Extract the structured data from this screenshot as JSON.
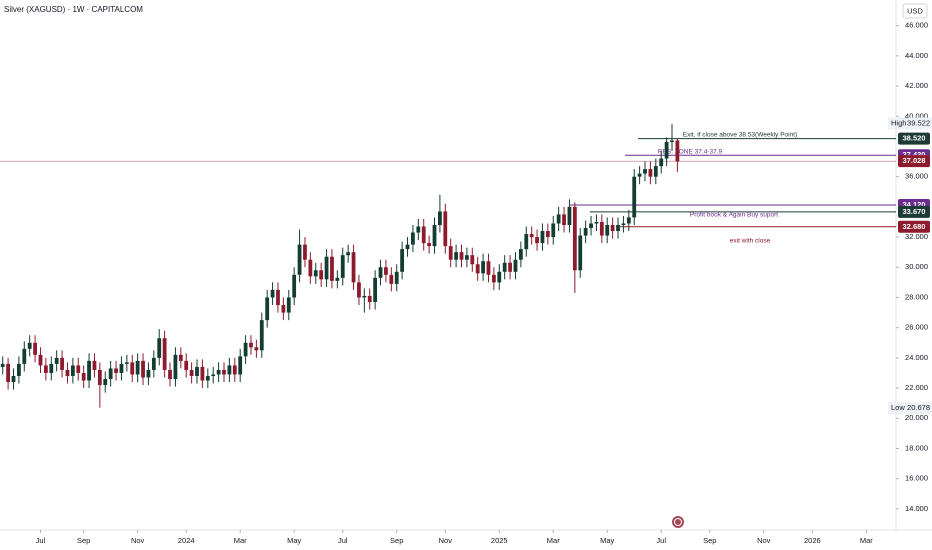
{
  "chart_data": {
    "type": "candlestick",
    "title": "Silver (XAGUSD) · 1W · CAPITALCOM",
    "currency": "USD",
    "up_color": "#133d33",
    "down_color": "#8e1b2d",
    "xlim": [
      -0.5,
      165.5
    ],
    "xticks": [
      {
        "value": 7,
        "label": "Jul"
      },
      {
        "value": 15,
        "label": "Sep"
      },
      {
        "value": 25,
        "label": "Nov"
      },
      {
        "value": 34,
        "label": "2024"
      },
      {
        "value": 44,
        "label": "Mar"
      },
      {
        "value": 54,
        "label": "May"
      },
      {
        "value": 63,
        "label": "Jul"
      },
      {
        "value": 73,
        "label": "Sep"
      },
      {
        "value": 82,
        "label": "Nov"
      },
      {
        "value": 92,
        "label": "2025"
      },
      {
        "value": 102,
        "label": "Mar"
      },
      {
        "value": 112,
        "label": "May"
      },
      {
        "value": 122,
        "label": "Jul"
      },
      {
        "value": 131,
        "label": "Sep"
      },
      {
        "value": 141,
        "label": "Nov"
      },
      {
        "value": 150,
        "label": "2026"
      },
      {
        "value": 160,
        "label": "Mar"
      }
    ],
    "ylim": [
      12.6,
      47.7
    ],
    "yticks": [
      {
        "value": 46,
        "label": "46.000"
      },
      {
        "value": 44,
        "label": "44.000"
      },
      {
        "value": 42,
        "label": "42.000"
      },
      {
        "value": 40,
        "label": "40.000"
      },
      {
        "value": 36,
        "label": "36.000"
      },
      {
        "value": 32,
        "label": "32.000"
      },
      {
        "value": 30,
        "label": "30.000"
      },
      {
        "value": 28,
        "label": "28.000"
      },
      {
        "value": 26,
        "label": "26.000"
      },
      {
        "value": 24,
        "label": "24.000"
      },
      {
        "value": 22,
        "label": "22.000"
      },
      {
        "value": 20,
        "label": "20.000"
      },
      {
        "value": 18,
        "label": "18.000"
      },
      {
        "value": 16,
        "label": "16.000"
      },
      {
        "value": 14,
        "label": "14.000"
      }
    ],
    "open": [
      23.4,
      23.6,
      22.4,
      22.8,
      23.6,
      24.6,
      25.0,
      24.2,
      23.5,
      23.0,
      23.6,
      24.0,
      23.2,
      22.8,
      23.5,
      23.0,
      22.5,
      23.8,
      23.2,
      22.2,
      22.6,
      23.3,
      23.0,
      23.6,
      23.7,
      22.9,
      23.8,
      22.7,
      23.2,
      24.0,
      25.3,
      23.2,
      22.6,
      24.2,
      23.8,
      23.2,
      22.8,
      23.4,
      22.5,
      22.8,
      22.9,
      23.2,
      22.9,
      23.5,
      22.9,
      24.1,
      25.0,
      24.7,
      24.5,
      26.5,
      28.0,
      28.5,
      27.5,
      27.0,
      28.0,
      29.5,
      31.5,
      30.5,
      29.4,
      29.8,
      29.2,
      30.7,
      29.1,
      29.3,
      30.8,
      31.0,
      29.0,
      28.0,
      28.1,
      27.7,
      29.3,
      30.0,
      29.5,
      28.9,
      29.7,
      31.2,
      31.5,
      32.3,
      32.7,
      31.6,
      31.4,
      32.8,
      33.7,
      31.4,
      30.5,
      31.0,
      30.5,
      30.8,
      30.2,
      29.6,
      30.4,
      29.5,
      29.0,
      29.7,
      30.3,
      29.7,
      30.5,
      31.2,
      32.2,
      32.0,
      31.6,
      32.4,
      32.0,
      32.9,
      33.5,
      32.8,
      34.0,
      29.8,
      32.1,
      32.6,
      32.9,
      33.0,
      32.1,
      32.8,
      32.4,
      32.8,
      32.9,
      33.3,
      36.0,
      36.2,
      36.5,
      36.0,
      36.7,
      37.2,
      38.3,
      38.4
    ],
    "high": [
      24.1,
      24.0,
      23.3,
      24.1,
      25.1,
      25.5,
      25.5,
      24.7,
      24.0,
      24.1,
      24.5,
      24.5,
      23.7,
      24.0,
      24.0,
      23.5,
      24.3,
      24.3,
      23.7,
      23.1,
      23.8,
      23.8,
      24.1,
      24.2,
      24.2,
      24.3,
      24.3,
      23.7,
      24.5,
      25.9,
      25.8,
      23.7,
      24.7,
      24.7,
      24.3,
      23.7,
      23.9,
      23.9,
      23.3,
      23.4,
      23.7,
      23.7,
      24.0,
      24.0,
      24.6,
      25.5,
      25.5,
      25.2,
      27.0,
      28.5,
      29.0,
      29.0,
      28.0,
      28.5,
      30.0,
      32.5,
      32.0,
      31.0,
      30.3,
      30.3,
      31.2,
      31.2,
      29.8,
      31.3,
      31.5,
      31.5,
      29.5,
      28.6,
      28.6,
      29.8,
      30.5,
      30.5,
      30.0,
      30.2,
      31.7,
      32.0,
      32.8,
      33.2,
      33.2,
      32.1,
      33.3,
      34.8,
      34.2,
      31.9,
      31.5,
      31.5,
      31.3,
      31.3,
      30.7,
      30.9,
      30.9,
      30.0,
      30.2,
      30.8,
      30.8,
      31.0,
      31.7,
      32.7,
      32.7,
      32.5,
      32.9,
      32.9,
      33.4,
      34.0,
      34.0,
      34.5,
      34.3,
      32.6,
      33.1,
      33.4,
      33.5,
      33.5,
      33.3,
      33.3,
      33.3,
      33.4,
      33.8,
      36.5,
      36.7,
      37.0,
      37.0,
      37.2,
      37.7,
      38.6,
      39.5,
      38.5
    ],
    "low": [
      22.9,
      21.9,
      21.9,
      22.3,
      23.1,
      24.1,
      23.7,
      23.0,
      22.5,
      22.5,
      23.1,
      22.7,
      22.3,
      22.3,
      22.5,
      22.0,
      22.0,
      22.7,
      20.7,
      21.7,
      22.1,
      22.5,
      22.5,
      23.1,
      22.4,
      22.4,
      22.2,
      22.2,
      22.7,
      23.5,
      22.7,
      22.1,
      22.1,
      23.3,
      22.7,
      22.3,
      22.3,
      22.0,
      22.0,
      22.3,
      22.4,
      22.4,
      22.4,
      22.4,
      22.4,
      23.6,
      24.2,
      24.0,
      24.0,
      26.0,
      27.5,
      27.0,
      26.5,
      26.5,
      27.5,
      29.0,
      30.0,
      28.9,
      28.9,
      28.7,
      28.7,
      28.6,
      28.6,
      28.8,
      30.3,
      28.5,
      27.5,
      27.0,
      27.2,
      27.2,
      28.8,
      29.0,
      28.4,
      28.4,
      29.2,
      30.7,
      31.0,
      31.8,
      31.1,
      30.9,
      30.9,
      32.3,
      30.9,
      30.0,
      30.0,
      30.0,
      30.0,
      29.7,
      29.1,
      29.1,
      29.0,
      28.5,
      28.5,
      29.2,
      29.2,
      29.2,
      30.0,
      30.7,
      31.5,
      31.1,
      31.1,
      31.5,
      31.5,
      32.4,
      32.3,
      32.3,
      28.3,
      29.3,
      31.6,
      32.1,
      32.4,
      31.6,
      31.6,
      31.9,
      31.9,
      32.3,
      32.4,
      32.8,
      35.5,
      35.7,
      35.5,
      35.5,
      36.2,
      36.7,
      37.7,
      36.3
    ],
    "close": [
      23.6,
      22.4,
      22.8,
      23.6,
      24.6,
      25.0,
      24.2,
      23.5,
      23.0,
      23.6,
      24.0,
      23.2,
      22.8,
      23.5,
      23.0,
      22.5,
      23.8,
      23.2,
      22.2,
      22.6,
      23.3,
      23.0,
      23.6,
      23.7,
      22.9,
      23.8,
      22.7,
      23.2,
      24.0,
      25.3,
      23.2,
      22.6,
      24.2,
      23.8,
      23.2,
      22.8,
      23.4,
      22.5,
      22.8,
      22.9,
      23.2,
      22.9,
      23.5,
      22.9,
      24.1,
      25.0,
      24.7,
      24.5,
      26.5,
      28.0,
      28.5,
      27.5,
      27.0,
      28.0,
      29.5,
      31.5,
      30.5,
      29.4,
      29.8,
      29.2,
      30.7,
      29.1,
      29.3,
      30.8,
      31.0,
      29.0,
      28.0,
      28.1,
      27.7,
      29.3,
      30.0,
      29.5,
      28.9,
      29.7,
      31.2,
      31.5,
      32.3,
      32.7,
      31.6,
      31.4,
      32.8,
      33.7,
      31.4,
      30.5,
      31.0,
      30.5,
      30.8,
      30.2,
      29.6,
      30.4,
      29.5,
      29.0,
      29.7,
      30.3,
      29.7,
      30.5,
      31.2,
      32.2,
      32.0,
      31.6,
      32.4,
      32.0,
      32.9,
      33.5,
      32.8,
      34.0,
      29.8,
      32.1,
      32.6,
      32.9,
      33.0,
      32.1,
      32.8,
      32.4,
      32.8,
      32.9,
      33.3,
      36.0,
      36.2,
      36.5,
      36.0,
      36.7,
      37.2,
      38.3,
      38.4,
      37.0
    ],
    "high_marker": {
      "label": "High",
      "value": 39.522
    },
    "low_marker": {
      "label": "Low",
      "value": 20.678
    },
    "levels": [
      {
        "value": 38.52,
        "label": "38.520",
        "color": "#1e3a34",
        "note": "Exit, if close above 38.53(Weekly Point)"
      },
      {
        "value": 37.42,
        "label": "37.420",
        "color": "#6a2c91",
        "note": "RES. ZONE 37.4-37.9"
      },
      {
        "value": 37.028,
        "label": "37.028",
        "color": "#8e1b2d"
      },
      {
        "value": 34.12,
        "label": "34.120",
        "color": "#6a2c91",
        "note": "Profit book & Again Buy suport"
      },
      {
        "value": 33.67,
        "label": "33.670",
        "color": "#1e3a34"
      },
      {
        "value": 32.68,
        "label": "32.680",
        "color": "#8e1b2d",
        "note": "exit with close"
      }
    ]
  }
}
